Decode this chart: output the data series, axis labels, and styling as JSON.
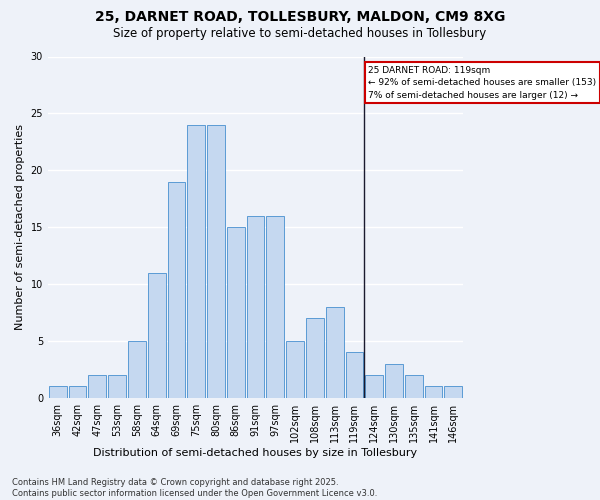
{
  "title_line1": "25, DARNET ROAD, TOLLESBURY, MALDON, CM9 8XG",
  "title_line2": "Size of property relative to semi-detached houses in Tollesbury",
  "xlabel": "Distribution of semi-detached houses by size in Tollesbury",
  "ylabel": "Number of semi-detached properties",
  "categories": [
    "36sqm",
    "42sqm",
    "47sqm",
    "53sqm",
    "58sqm",
    "64sqm",
    "69sqm",
    "75sqm",
    "80sqm",
    "86sqm",
    "91sqm",
    "97sqm",
    "102sqm",
    "108sqm",
    "113sqm",
    "119sqm",
    "124sqm",
    "130sqm",
    "135sqm",
    "141sqm",
    "146sqm"
  ],
  "values": [
    1,
    1,
    2,
    2,
    5,
    11,
    19,
    24,
    24,
    15,
    16,
    16,
    5,
    7,
    8,
    4,
    2,
    3,
    2,
    1,
    1
  ],
  "bar_color": "#c5d8f0",
  "bar_edge_color": "#5b9bd5",
  "highlight_index": 15,
  "vline_x": 15.5,
  "vline_color": "#1a1a2e",
  "annotation_text_line1": "25 DARNET ROAD: 119sqm",
  "annotation_text_line2": "← 92% of semi-detached houses are smaller (153)",
  "annotation_text_line3": "7% of semi-detached houses are larger (12) →",
  "annotation_box_color": "#ffffff",
  "annotation_box_edge_color": "#cc0000",
  "ylim": [
    0,
    30
  ],
  "yticks": [
    0,
    5,
    10,
    15,
    20,
    25,
    30
  ],
  "footer_text": "Contains HM Land Registry data © Crown copyright and database right 2025.\nContains public sector information licensed under the Open Government Licence v3.0.",
  "bg_color": "#eef2f9",
  "grid_color": "#ffffff",
  "title_fontsize": 10,
  "subtitle_fontsize": 8.5,
  "axis_label_fontsize": 8,
  "tick_fontsize": 7,
  "footer_fontsize": 6
}
